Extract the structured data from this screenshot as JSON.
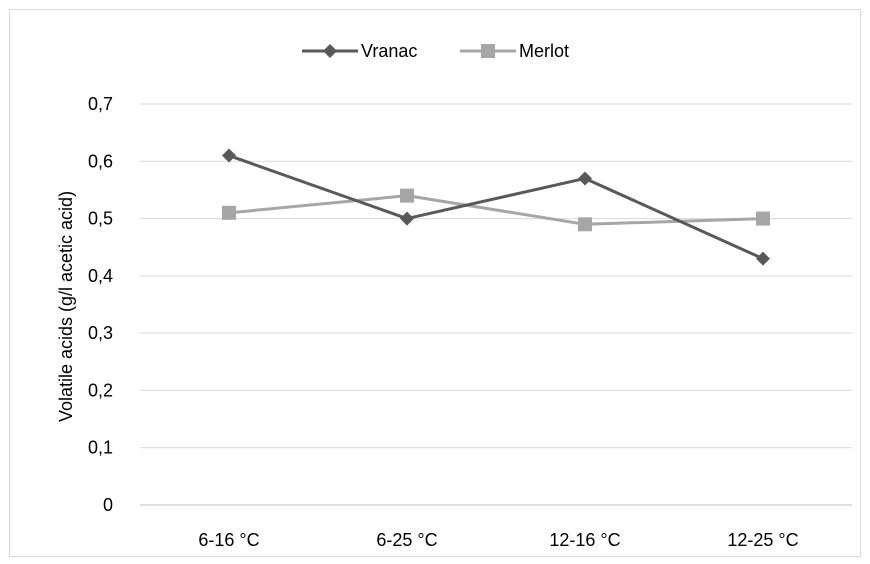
{
  "chart_data": {
    "type": "line",
    "title": "",
    "xlabel": "",
    "ylabel": "Volatile acids (g/l acetic acid)",
    "categories": [
      "6-16 °C",
      "6-25 °C",
      "12-16 °C",
      "12-25 °C"
    ],
    "yticks": [
      "0",
      "0,1",
      "0,2",
      "0,3",
      "0,4",
      "0,5",
      "0,6",
      "0,7"
    ],
    "ylim": [
      0,
      0.7
    ],
    "grid": true,
    "legend_position": "top",
    "series": [
      {
        "name": "Vranac",
        "values": [
          0.61,
          0.5,
          0.57,
          0.43
        ],
        "color": "#595959",
        "marker": "diamond"
      },
      {
        "name": "Merlot",
        "values": [
          0.51,
          0.54,
          0.49,
          0.5
        ],
        "color": "#a6a6a6",
        "marker": "square"
      }
    ]
  }
}
